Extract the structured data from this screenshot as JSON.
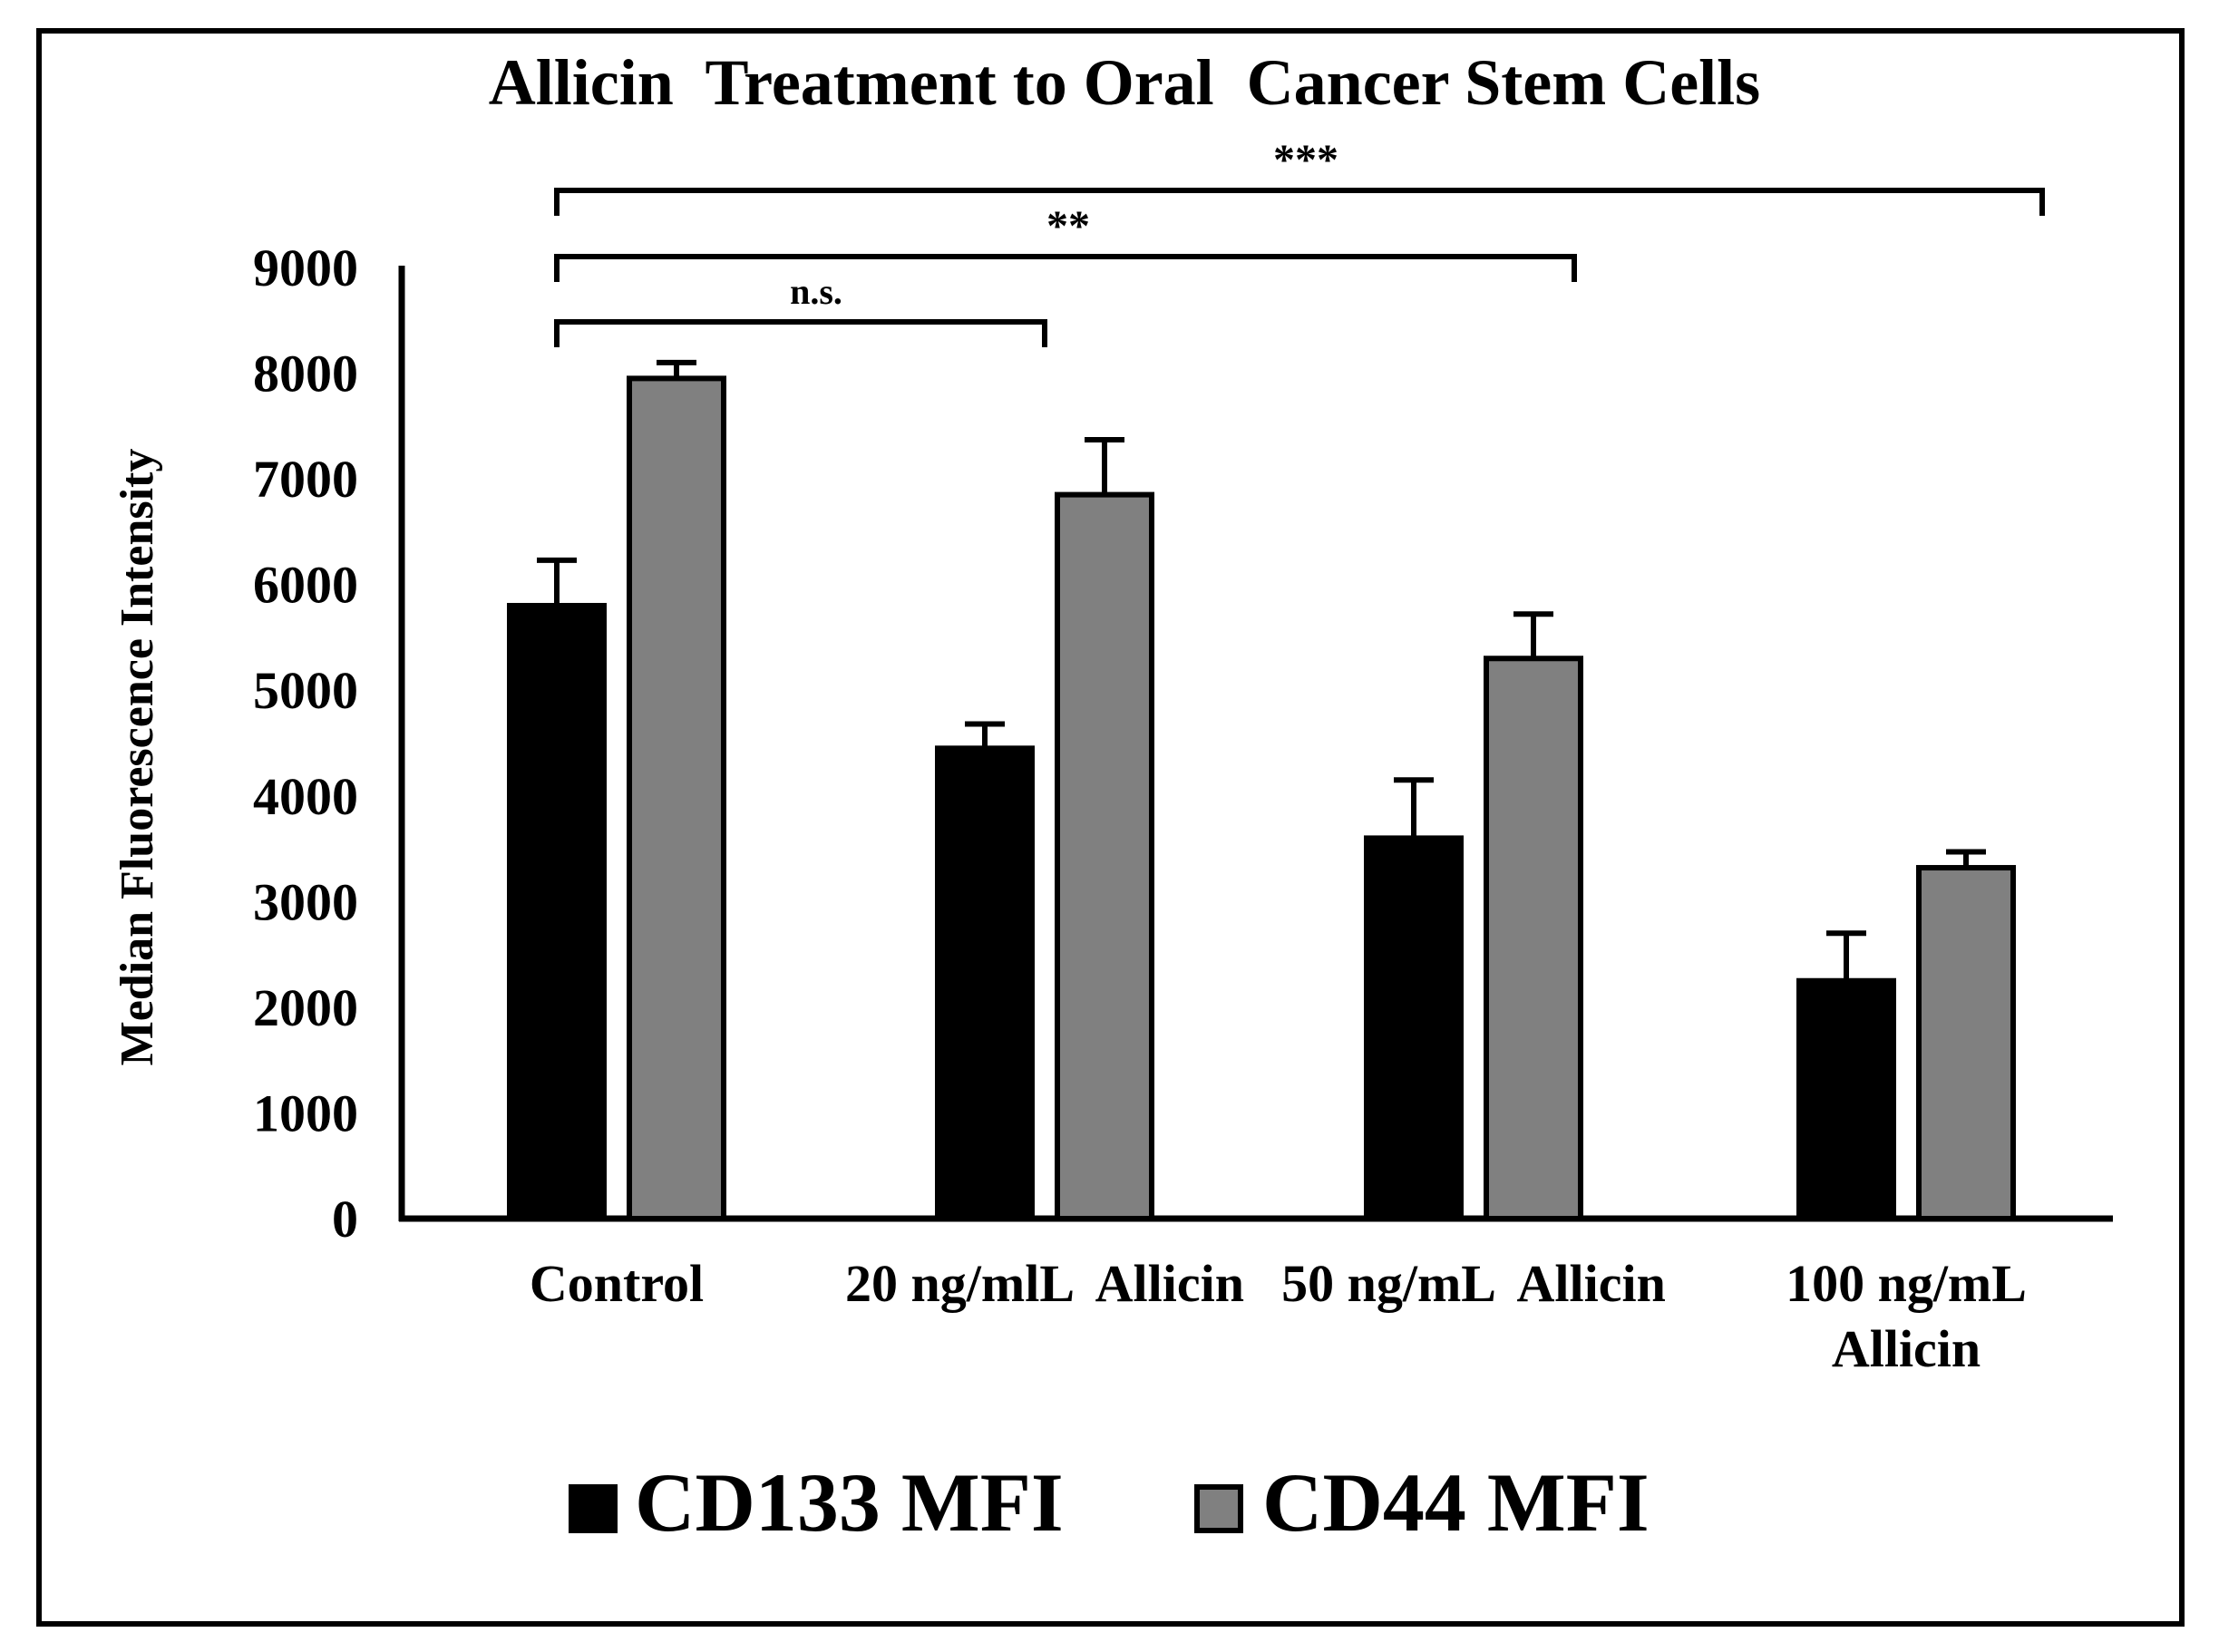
{
  "chart_data": {
    "type": "bar",
    "title": "Allicin  Treatment to Oral  Cancer Stem Cells",
    "xlabel": "",
    "ylabel": "Median Fluorescence Intensity",
    "ylim": [
      0,
      9000
    ],
    "yticks": [
      0,
      1000,
      2000,
      3000,
      4000,
      5000,
      6000,
      7000,
      8000,
      9000
    ],
    "grid": false,
    "legend_position": "bottom",
    "categories": [
      [
        "Control"
      ],
      [
        "20 ng/mlL  Allicin"
      ],
      [
        "50 ng/mL  Allicin"
      ],
      [
        "100 ng/mL",
        "Allicin"
      ]
    ],
    "series": [
      {
        "name": "CD133 MFI",
        "color": "#000000",
        "values": [
          5800,
          4450,
          3600,
          2250
        ],
        "errors": [
          430,
          230,
          550,
          450
        ]
      },
      {
        "name": "CD44 MFI",
        "color": "#808080",
        "values": [
          7950,
          6850,
          5300,
          3320
        ],
        "errors": [
          150,
          520,
          420,
          150
        ]
      }
    ],
    "significance": [
      {
        "label": "n.s.",
        "from": 0,
        "to": 1
      },
      {
        "label": "**",
        "from": 0,
        "to": 2
      },
      {
        "label": "***",
        "from": 0,
        "to": 3
      }
    ]
  }
}
